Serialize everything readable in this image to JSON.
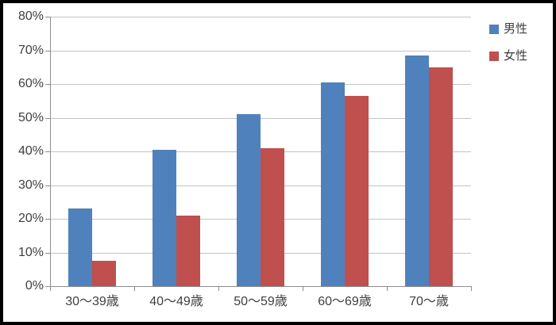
{
  "chart_data": {
    "type": "bar",
    "title": "",
    "categories": [
      "30〜39歳",
      "40〜49歳",
      "50〜59歳",
      "60〜69歳",
      "70〜歳"
    ],
    "series": [
      {
        "key": "male",
        "name": "男性",
        "color": "#4F81BD",
        "values": [
          23,
          40.5,
          51,
          60.5,
          68.5
        ]
      },
      {
        "key": "female",
        "name": "女性",
        "color": "#C0504D",
        "values": [
          7.5,
          21,
          41,
          56.5,
          65
        ]
      }
    ],
    "xlabel": "",
    "ylabel": "",
    "ylim": [
      0,
      80
    ],
    "ytick_step": 10,
    "ytick_labels": [
      "0%",
      "10%",
      "20%",
      "30%",
      "40%",
      "50%",
      "60%",
      "70%",
      "80%"
    ],
    "grid": true,
    "legend_position": "top-right",
    "colors": {
      "gridline": "#C3C3C3",
      "axis": "#8C8C8C",
      "text": "#3F3F3F",
      "background": "#FFFFFF",
      "frame_border": "#000000"
    }
  }
}
